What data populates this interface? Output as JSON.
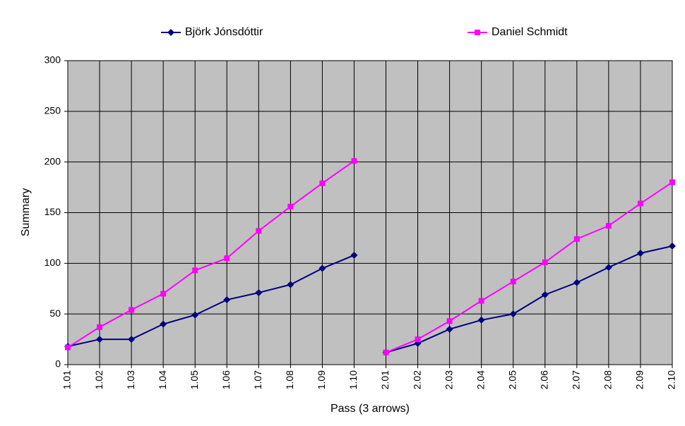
{
  "chart_data": {
    "type": "line",
    "x_label": "Pass (3 arrows)",
    "y_label": "Summary",
    "categories": [
      "1.01",
      "1.02",
      "1.03",
      "1.04",
      "1.05",
      "1.06",
      "1.07",
      "1.08",
      "1.09",
      "1.10",
      "2.01",
      "2.02",
      "2.03",
      "2.04",
      "2.05",
      "2.06",
      "2.07",
      "2.08",
      "2.09",
      "2.10"
    ],
    "series": [
      {
        "name": "Björk Jónsdóttir",
        "color": "#000080",
        "marker": "diamond",
        "values": [
          18,
          25,
          25,
          40,
          49,
          64,
          71,
          79,
          95,
          108,
          12,
          21,
          35,
          44,
          50,
          69,
          81,
          96,
          110,
          117
        ]
      },
      {
        "name": "Daniel Schmidt",
        "color": "#ff00ff",
        "marker": "square",
        "values": [
          17,
          37,
          54,
          70,
          93,
          105,
          132,
          156,
          179,
          201,
          12,
          25,
          43,
          63,
          82,
          101,
          124,
          137,
          159,
          180
        ]
      }
    ],
    "ylim": [
      0,
      300
    ],
    "yticks": [
      0,
      50,
      100,
      150,
      200,
      250,
      300
    ],
    "grid": true,
    "legend": "top"
  }
}
